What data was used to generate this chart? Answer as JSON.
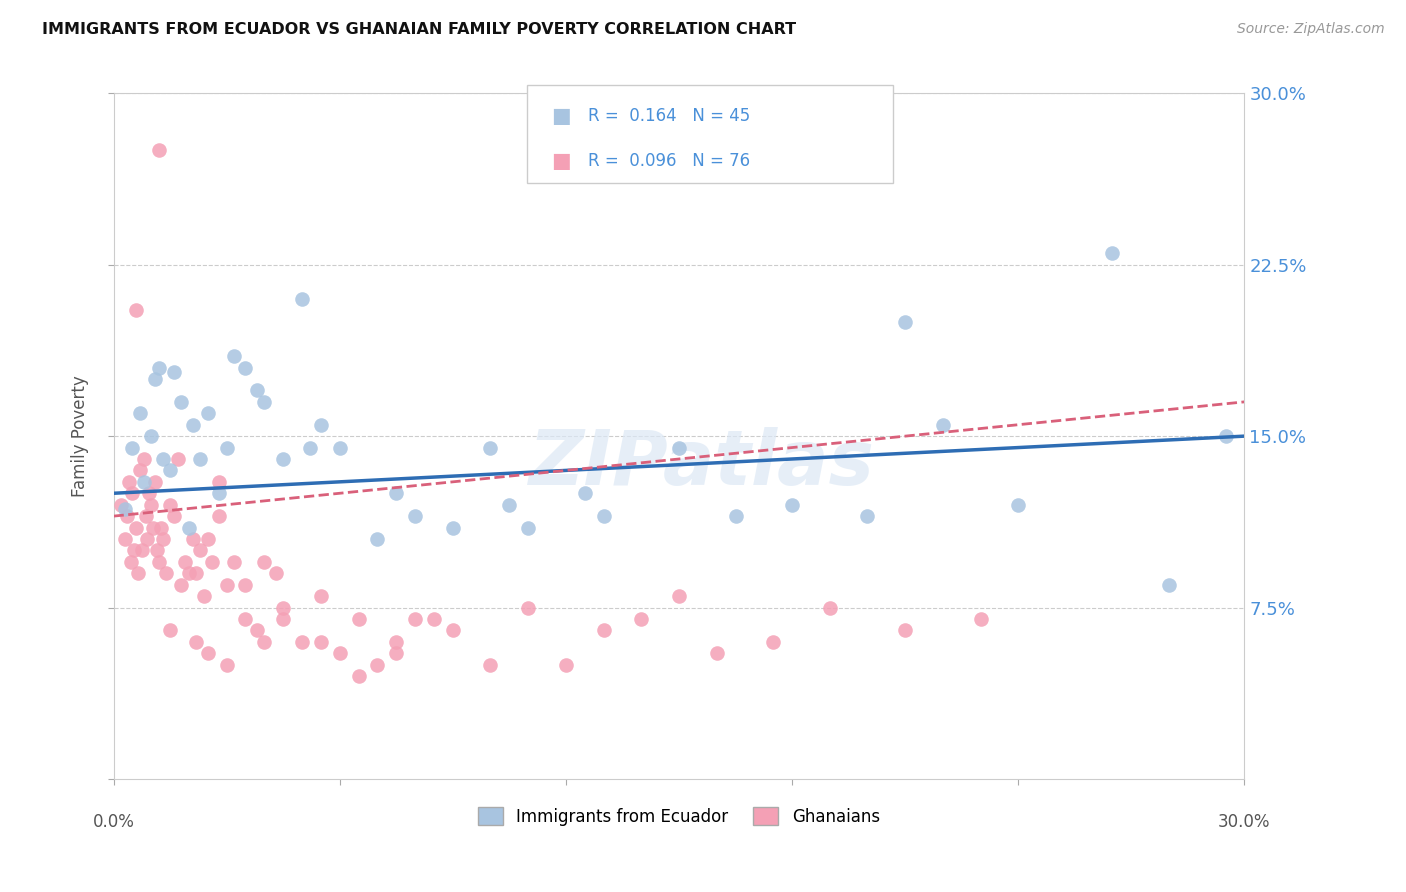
{
  "title": "IMMIGRANTS FROM ECUADOR VS GHANAIAN FAMILY POVERTY CORRELATION CHART",
  "source": "Source: ZipAtlas.com",
  "ylabel": "Family Poverty",
  "xlim": [
    0.0,
    30.0
  ],
  "ylim": [
    0.0,
    30.0
  ],
  "legend_R_blue": "0.164",
  "legend_N_blue": "45",
  "legend_R_pink": "0.096",
  "legend_N_pink": "76",
  "watermark": "ZIPatlas",
  "blue_color": "#a8c4e0",
  "pink_color": "#f4a0b5",
  "blue_line_color": "#2e6db4",
  "pink_line_color": "#d9607a",
  "grid_color": "#cccccc",
  "tick_label_color": "#4a90d9",
  "bg_color": "#ffffff",
  "blue_x": [
    0.3,
    0.5,
    0.7,
    0.8,
    1.0,
    1.1,
    1.2,
    1.3,
    1.5,
    1.6,
    1.8,
    2.0,
    2.1,
    2.3,
    2.5,
    2.8,
    3.0,
    3.2,
    3.5,
    3.8,
    4.0,
    4.5,
    5.0,
    5.2,
    5.5,
    6.0,
    7.0,
    7.5,
    8.0,
    9.0,
    10.0,
    10.5,
    11.0,
    12.5,
    13.0,
    15.0,
    16.5,
    18.0,
    20.0,
    21.0,
    22.0,
    24.0,
    26.5,
    28.0,
    29.5
  ],
  "blue_y": [
    11.8,
    14.5,
    16.0,
    13.0,
    15.0,
    17.5,
    18.0,
    14.0,
    13.5,
    17.8,
    16.5,
    11.0,
    15.5,
    14.0,
    16.0,
    12.5,
    14.5,
    18.5,
    18.0,
    17.0,
    16.5,
    14.0,
    21.0,
    14.5,
    15.5,
    14.5,
    10.5,
    12.5,
    11.5,
    11.0,
    14.5,
    12.0,
    11.0,
    12.5,
    11.5,
    14.5,
    11.5,
    12.0,
    11.5,
    20.0,
    15.5,
    12.0,
    23.0,
    8.5,
    15.0
  ],
  "pink_x": [
    0.2,
    0.3,
    0.35,
    0.4,
    0.45,
    0.5,
    0.55,
    0.6,
    0.65,
    0.7,
    0.75,
    0.8,
    0.85,
    0.9,
    0.95,
    1.0,
    1.05,
    1.1,
    1.15,
    1.2,
    1.25,
    1.3,
    1.4,
    1.5,
    1.6,
    1.7,
    1.8,
    1.9,
    2.0,
    2.1,
    2.2,
    2.3,
    2.4,
    2.5,
    2.6,
    2.8,
    3.0,
    3.2,
    3.5,
    3.8,
    4.0,
    4.3,
    4.5,
    5.0,
    5.5,
    6.0,
    6.5,
    7.0,
    7.5,
    8.0,
    9.0,
    10.0,
    11.0,
    12.0,
    13.0,
    14.0,
    15.0,
    16.0,
    17.5,
    19.0,
    21.0,
    23.0,
    2.5,
    3.0,
    1.5,
    3.5,
    2.2,
    4.5,
    5.5,
    4.0,
    2.8,
    6.5,
    7.5,
    8.5,
    1.2,
    0.6
  ],
  "pink_y": [
    12.0,
    10.5,
    11.5,
    13.0,
    9.5,
    12.5,
    10.0,
    11.0,
    9.0,
    13.5,
    10.0,
    14.0,
    11.5,
    10.5,
    12.5,
    12.0,
    11.0,
    13.0,
    10.0,
    9.5,
    11.0,
    10.5,
    9.0,
    12.0,
    11.5,
    14.0,
    8.5,
    9.5,
    9.0,
    10.5,
    9.0,
    10.0,
    8.0,
    10.5,
    9.5,
    11.5,
    8.5,
    9.5,
    7.0,
    6.5,
    6.0,
    9.0,
    7.5,
    6.0,
    8.0,
    5.5,
    7.0,
    5.0,
    6.0,
    7.0,
    6.5,
    5.0,
    7.5,
    5.0,
    6.5,
    7.0,
    8.0,
    5.5,
    6.0,
    7.5,
    6.5,
    7.0,
    5.5,
    5.0,
    6.5,
    8.5,
    6.0,
    7.0,
    6.0,
    9.5,
    13.0,
    4.5,
    5.5,
    7.0,
    27.5,
    20.5
  ],
  "blue_line_x": [
    0.0,
    30.0
  ],
  "blue_line_y": [
    12.5,
    15.0
  ],
  "pink_line_x": [
    0.0,
    30.0
  ],
  "pink_line_y": [
    11.5,
    16.5
  ]
}
